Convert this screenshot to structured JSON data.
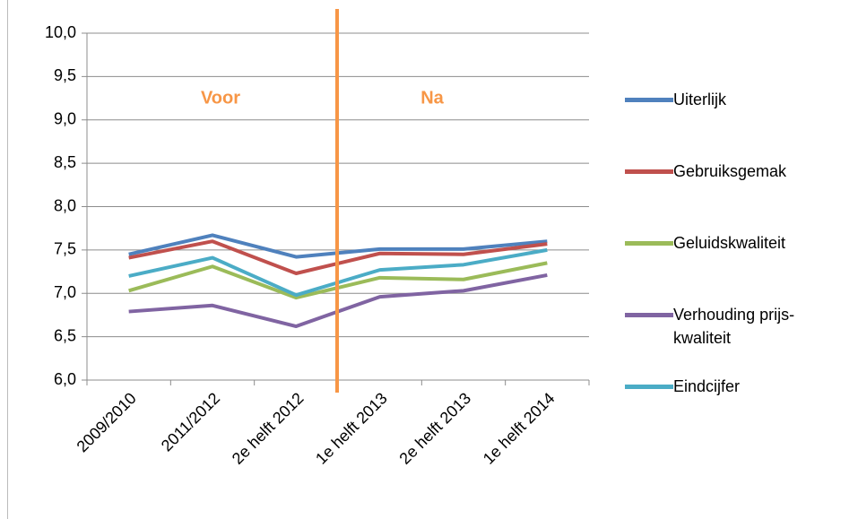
{
  "chart_data": {
    "type": "line",
    "categories": [
      "2009/2010",
      "2011/2012",
      "2e helft 2012",
      "1e helft 2013",
      "2e helft 2013",
      "1e helft 2014"
    ],
    "series": [
      {
        "name": "Uiterlijk",
        "color": "#4f81bd",
        "values": [
          7.45,
          7.67,
          7.42,
          7.51,
          7.51,
          7.6
        ]
      },
      {
        "name": "Gebruiksgemak",
        "color": "#c0504d",
        "values": [
          7.41,
          7.6,
          7.23,
          7.46,
          7.45,
          7.57
        ]
      },
      {
        "name": "Geluidskwaliteit",
        "color": "#9bbb59",
        "values": [
          7.03,
          7.31,
          6.95,
          7.18,
          7.16,
          7.35
        ]
      },
      {
        "name": "Verhouding prijs-kwaliteit",
        "color": "#8064a2",
        "values": [
          6.79,
          6.86,
          6.62,
          6.96,
          7.03,
          7.21
        ]
      },
      {
        "name": "Eindcijfer",
        "color": "#4bacc6",
        "values": [
          7.2,
          7.41,
          6.98,
          7.27,
          7.33,
          7.5
        ]
      }
    ],
    "ylim": [
      6,
      10
    ],
    "yticks": [
      {
        "value": 6,
        "label": "6,0"
      },
      {
        "value": 6.5,
        "label": "6,5"
      },
      {
        "value": 7,
        "label": "7,0"
      },
      {
        "value": 7.5,
        "label": "7,5"
      },
      {
        "value": 8,
        "label": "8,0"
      },
      {
        "value": 8.5,
        "label": "8,5"
      },
      {
        "value": 9,
        "label": "9,0"
      },
      {
        "value": 9.5,
        "label": "9,5"
      },
      {
        "value": 10,
        "label": "10,0"
      }
    ],
    "grid": true,
    "annotations": [
      "Voor",
      "Na"
    ],
    "legend": "right"
  }
}
